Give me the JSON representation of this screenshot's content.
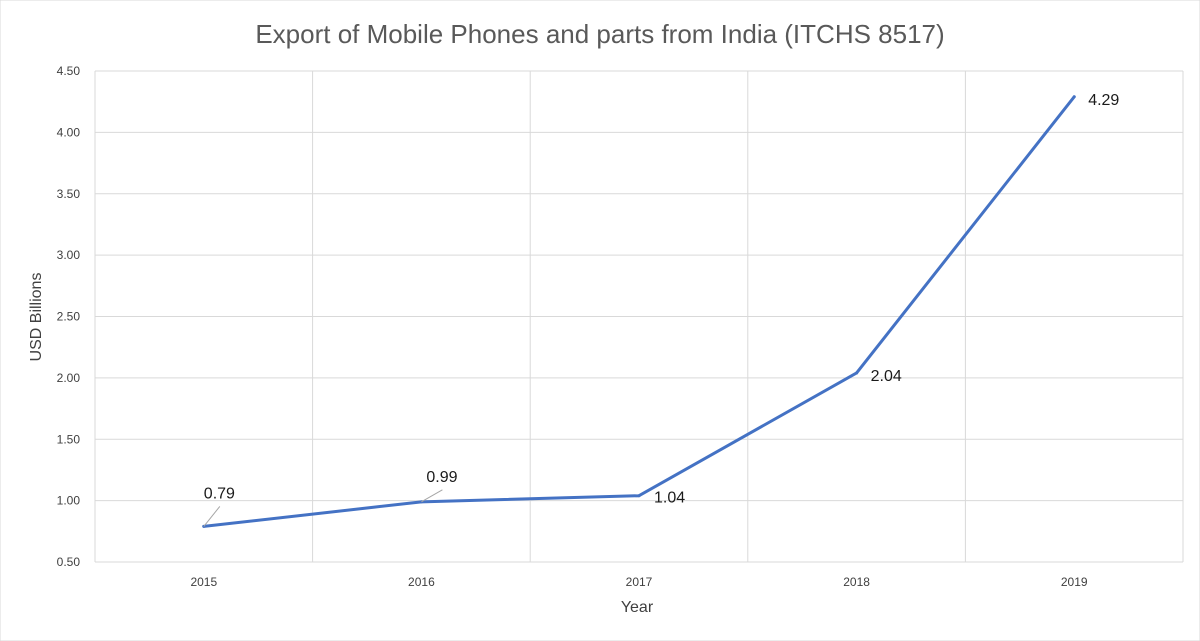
{
  "chart_data": {
    "type": "line",
    "title": "Export of Mobile Phones and parts from India (ITCHS 8517)",
    "xlabel": "Year",
    "ylabel": "USD Billions",
    "categories": [
      "2015",
      "2016",
      "2017",
      "2018",
      "2019"
    ],
    "series": [
      {
        "values": [
          0.79,
          0.99,
          1.04,
          2.04,
          4.29
        ],
        "color": "#4472C4"
      }
    ],
    "data_labels": [
      "0.79",
      "0.99",
      "1.04",
      "2.04",
      "4.29"
    ],
    "ylim": [
      0.5,
      4.5
    ],
    "yticks": [
      0.5,
      1.0,
      1.5,
      2.0,
      2.5,
      3.0,
      3.5,
      4.0,
      4.5
    ],
    "ytick_labels": [
      "0.50",
      "1.00",
      "1.50",
      "2.00",
      "2.50",
      "3.00",
      "3.50",
      "4.00",
      "4.50"
    ],
    "grid": true,
    "legend": "none"
  }
}
